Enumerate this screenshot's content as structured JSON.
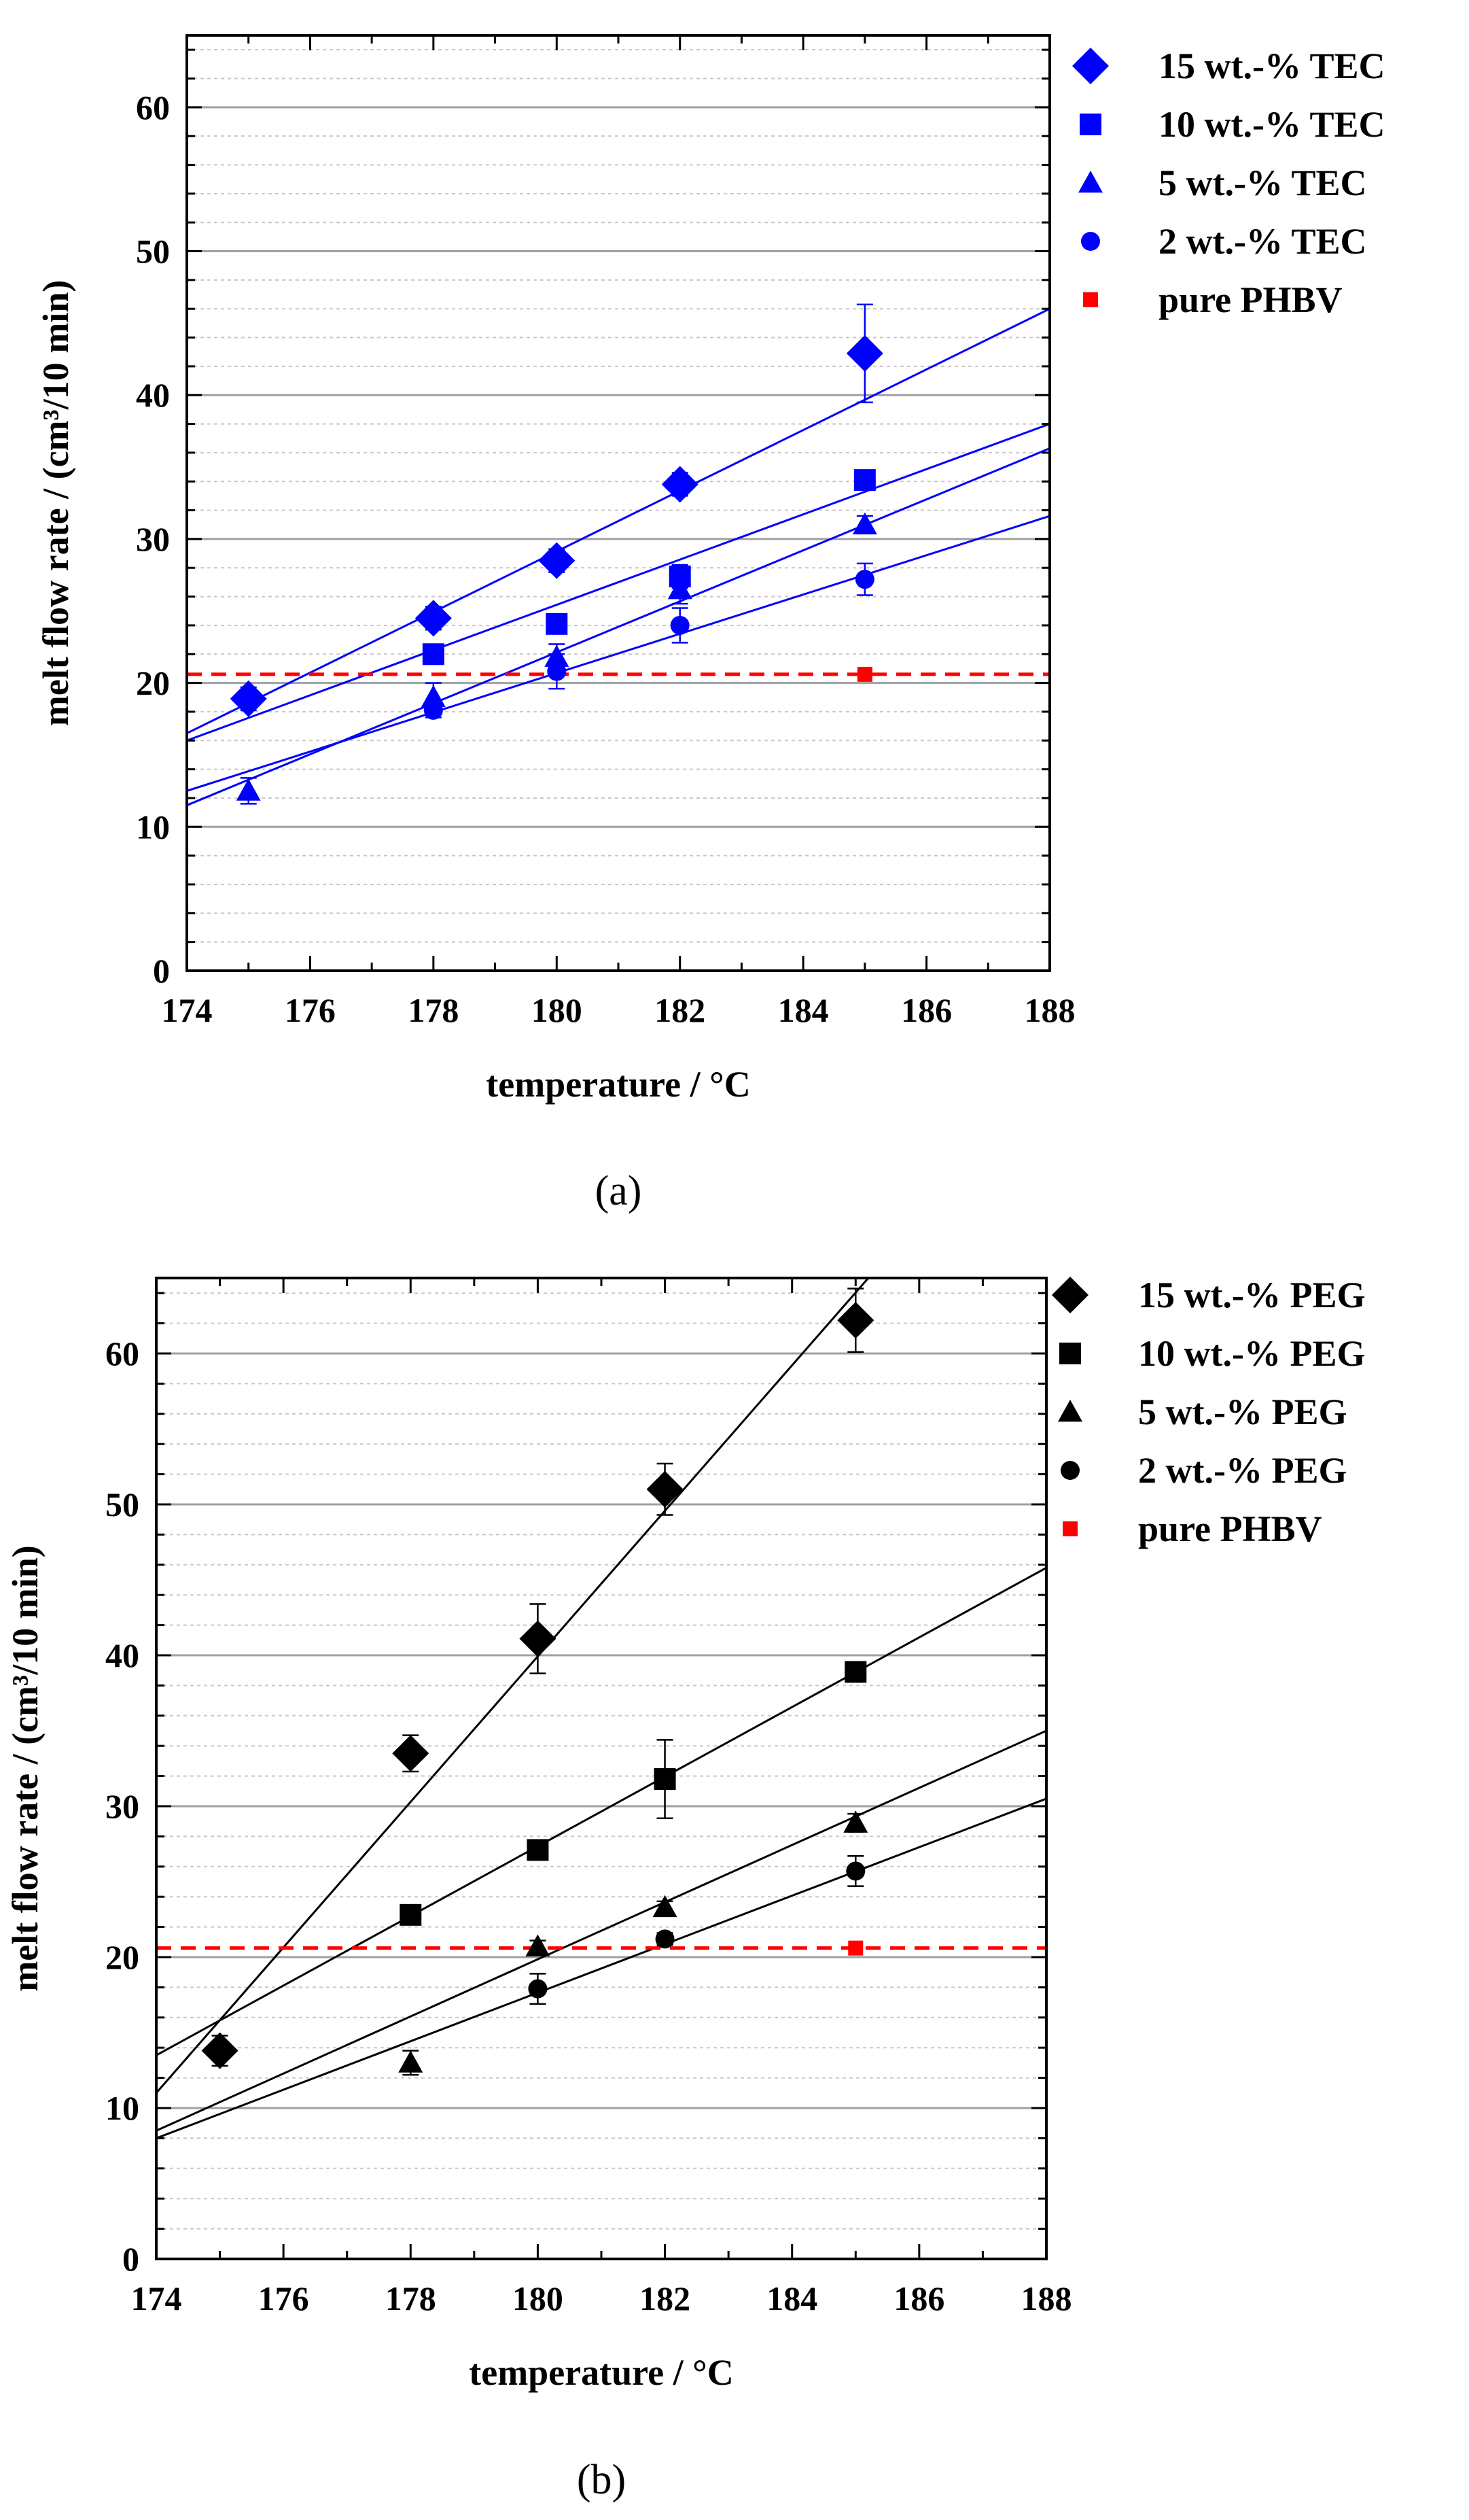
{
  "chart_data": [
    {
      "type": "scatter",
      "panel_label": "(a)",
      "xlabel": "temperature / °C",
      "ylabel": "melt flow rate / (cm³/10 min)",
      "xlim": [
        174,
        188
      ],
      "ylim": [
        0,
        65
      ],
      "x_ticks": [
        174,
        176,
        178,
        180,
        182,
        184,
        186,
        188
      ],
      "y_ticks": [
        0,
        10,
        20,
        30,
        40,
        50,
        60
      ],
      "grid": "major and minor horizontal lines",
      "legend_position": "right",
      "series": [
        {
          "name": "15 wt.-% TEC",
          "marker": "diamond",
          "color": "#0000ff",
          "x": [
            175,
            178,
            180,
            182,
            185
          ],
          "y": [
            18.9,
            24.5,
            28.5,
            33.8,
            42.9
          ],
          "err": [
            0.8,
            0.8,
            0.8,
            0.8,
            3.4
          ],
          "fit": {
            "x": [
              174,
              188
            ],
            "y": [
              16.5,
              46.0
            ]
          }
        },
        {
          "name": "10 wt.-% TEC",
          "marker": "square",
          "color": "#0000ff",
          "x": [
            178,
            180,
            182,
            185
          ],
          "y": [
            22.0,
            24.1,
            27.4,
            34.1
          ],
          "err": [
            0.5,
            0.5,
            0.8,
            0.6
          ],
          "fit": {
            "x": [
              174,
              188
            ],
            "y": [
              16.0,
              38.0
            ]
          }
        },
        {
          "name": "5 wt.-% TEC",
          "marker": "triangle",
          "color": "#0000ff",
          "x": [
            175,
            178,
            180,
            182,
            185
          ],
          "y": [
            12.5,
            19.0,
            21.8,
            26.5,
            31.0
          ],
          "err": [
            0.9,
            1.0,
            0.9,
            1.0,
            0.6
          ],
          "fit": {
            "x": [
              174,
              188
            ],
            "y": [
              11.5,
              36.3
            ]
          }
        },
        {
          "name": "2 wt.-% TEC",
          "marker": "circle",
          "color": "#0000ff",
          "x": [
            178,
            180,
            182,
            185
          ],
          "y": [
            18.1,
            20.8,
            24.0,
            27.2
          ],
          "err": [
            0.5,
            1.2,
            1.2,
            1.1
          ],
          "fit": {
            "x": [
              174,
              188
            ],
            "y": [
              12.5,
              31.6
            ]
          }
        },
        {
          "name": "pure PHBV",
          "marker": "small-square",
          "color": "#ff0000",
          "x": [
            185
          ],
          "y": [
            20.6
          ],
          "err": [
            0
          ],
          "reference_line": {
            "y": 20.6,
            "style": "dashed",
            "color": "#ff0000"
          }
        }
      ]
    },
    {
      "type": "scatter",
      "panel_label": "(b)",
      "xlabel": "temperature / °C",
      "ylabel": "melt flow rate / (cm³/10 min)",
      "xlim": [
        174,
        188
      ],
      "ylim": [
        0,
        65
      ],
      "x_ticks": [
        174,
        176,
        178,
        180,
        182,
        184,
        186,
        188
      ],
      "y_ticks": [
        0,
        10,
        20,
        30,
        40,
        50,
        60
      ],
      "grid": "major and minor horizontal lines",
      "legend_position": "right",
      "series": [
        {
          "name": "15 wt.-%  PEG",
          "marker": "diamond",
          "color": "#000000",
          "x": [
            175,
            178,
            180,
            182,
            185
          ],
          "y": [
            13.8,
            33.5,
            41.1,
            51.0,
            62.2
          ],
          "err": [
            1.0,
            1.2,
            2.3,
            1.7,
            2.1
          ],
          "fit": {
            "x": [
              174,
              185.2
            ],
            "y": [
              11.0,
              65.0
            ]
          }
        },
        {
          "name": "10 wt.-% PEG",
          "marker": "square",
          "color": "#000000",
          "x": [
            178,
            180,
            182,
            185
          ],
          "y": [
            22.8,
            27.1,
            31.8,
            38.9
          ],
          "err": [
            0.4,
            0.4,
            2.6,
            0.5
          ],
          "fit": {
            "x": [
              174,
              188
            ],
            "y": [
              13.5,
              45.8
            ]
          }
        },
        {
          "name": "5 wt.-% PEG",
          "marker": "triangle",
          "color": "#000000",
          "x": [
            178,
            180,
            182,
            185
          ],
          "y": [
            13.0,
            20.7,
            23.3,
            28.9
          ],
          "err": [
            0.8,
            0.4,
            0.4,
            0.6
          ],
          "fit": {
            "x": [
              174,
              188
            ],
            "y": [
              8.5,
              35.0
            ]
          }
        },
        {
          "name": "2 wt.-% PEG",
          "marker": "circle",
          "color": "#000000",
          "x": [
            180,
            182,
            185
          ],
          "y": [
            17.9,
            21.2,
            25.7
          ],
          "err": [
            1.0,
            0.4,
            1.0
          ],
          "fit": {
            "x": [
              174,
              188
            ],
            "y": [
              8.0,
              30.5
            ]
          }
        },
        {
          "name": "pure PHBV",
          "marker": "small-square",
          "color": "#ff0000",
          "x": [
            185
          ],
          "y": [
            20.6
          ],
          "err": [
            0
          ],
          "reference_line": {
            "y": 20.6,
            "style": "dashed",
            "color": "#ff0000"
          }
        }
      ]
    }
  ]
}
